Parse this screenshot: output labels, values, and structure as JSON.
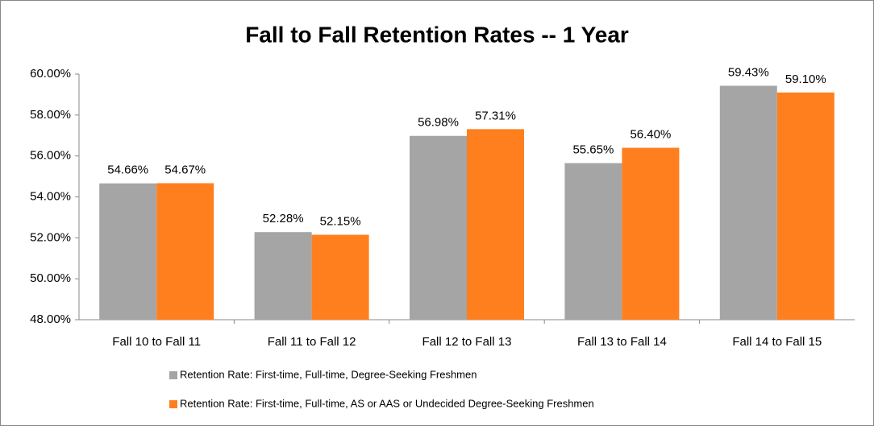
{
  "chart_data": {
    "type": "bar",
    "title": "Fall to Fall Retention Rates -- 1 Year",
    "categories": [
      "Fall 10 to Fall 11",
      "Fall 11 to Fall 12",
      "Fall 12 to Fall 13",
      "Fall 13 to Fall 14",
      "Fall 14 to Fall 15"
    ],
    "series": [
      {
        "name": "Retention Rate: First-time, Full-time, Degree-Seeking Freshmen",
        "color": "#a5a5a5",
        "values": [
          54.66,
          52.28,
          56.98,
          55.65,
          59.43
        ],
        "value_labels": [
          "54.66%",
          "52.28%",
          "56.98%",
          "55.65%",
          "59.43%"
        ]
      },
      {
        "name": "Retention Rate: First-time, Full-time, AS or AAS or Undecided Degree-Seeking Freshmen",
        "color": "#ff7f1e",
        "values": [
          54.67,
          52.15,
          57.31,
          56.4,
          59.1
        ],
        "value_labels": [
          "54.67%",
          "52.15%",
          "57.31%",
          "56.40%",
          "59.10%"
        ]
      }
    ],
    "ylim": [
      48,
      60
    ],
    "yticks": [
      {
        "value": 48,
        "label": "48.00%"
      },
      {
        "value": 50,
        "label": "50.00%"
      },
      {
        "value": 52,
        "label": "52.00%"
      },
      {
        "value": 54,
        "label": "54.00%"
      },
      {
        "value": 56,
        "label": "56.00%"
      },
      {
        "value": 58,
        "label": "58.00%"
      },
      {
        "value": 60,
        "label": "60.00%"
      }
    ],
    "grid": false,
    "legend": "bottom"
  }
}
